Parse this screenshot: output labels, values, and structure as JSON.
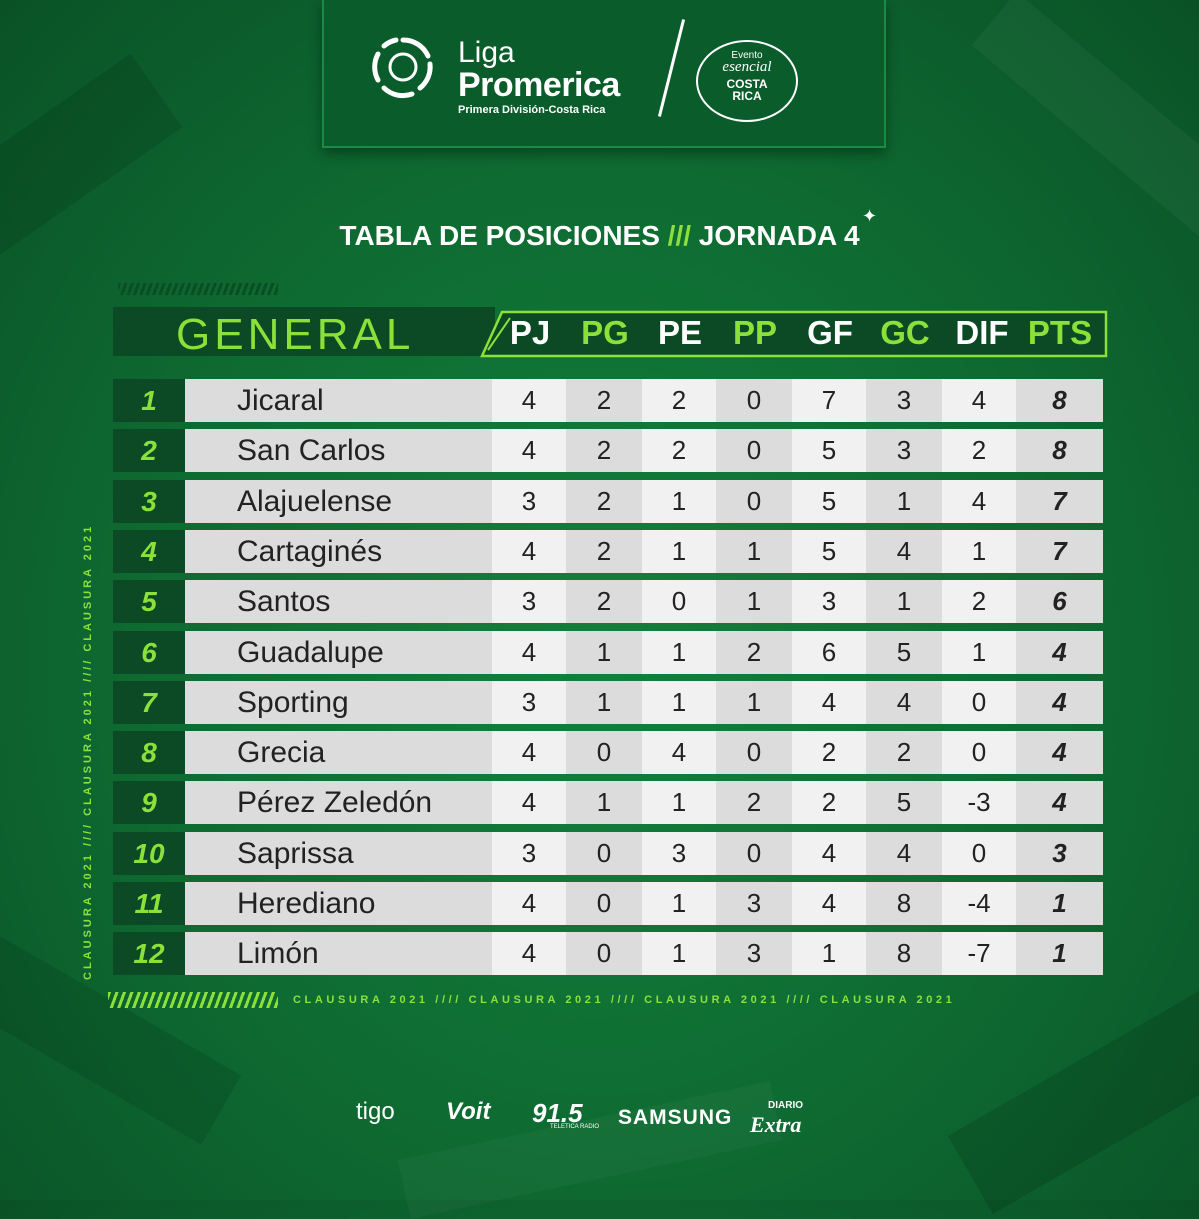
{
  "brand": {
    "liga": "Liga",
    "promerica": "Promerica",
    "subtitle": "Primera División-Costa Rica",
    "badge_line1": "Evento",
    "badge_line2": "esencial",
    "badge_line3": "COSTA",
    "badge_line4": "RICA"
  },
  "title": {
    "left": "TABLA DE POSICIONES",
    "slashes": "///",
    "right": "JORNADA 4"
  },
  "table": {
    "section_label": "GENERAL",
    "columns": [
      "PJ",
      "PG",
      "PE",
      "PP",
      "GF",
      "GC",
      "DIF",
      "PTS"
    ],
    "rows": [
      {
        "pos": "1",
        "team": "Jicaral",
        "pj": "4",
        "pg": "2",
        "pe": "2",
        "pp": "0",
        "gf": "7",
        "gc": "3",
        "dif": "4",
        "pts": "8"
      },
      {
        "pos": "2",
        "team": "San Carlos",
        "pj": "4",
        "pg": "2",
        "pe": "2",
        "pp": "0",
        "gf": "5",
        "gc": "3",
        "dif": "2",
        "pts": "8"
      },
      {
        "pos": "3",
        "team": "Alajuelense",
        "pj": "3",
        "pg": "2",
        "pe": "1",
        "pp": "0",
        "gf": "5",
        "gc": "1",
        "dif": "4",
        "pts": "7"
      },
      {
        "pos": "4",
        "team": "Cartaginés",
        "pj": "4",
        "pg": "2",
        "pe": "1",
        "pp": "1",
        "gf": "5",
        "gc": "4",
        "dif": "1",
        "pts": "7"
      },
      {
        "pos": "5",
        "team": "Santos",
        "pj": "3",
        "pg": "2",
        "pe": "0",
        "pp": "1",
        "gf": "3",
        "gc": "1",
        "dif": "2",
        "pts": "6"
      },
      {
        "pos": "6",
        "team": "Guadalupe",
        "pj": "4",
        "pg": "1",
        "pe": "1",
        "pp": "2",
        "gf": "6",
        "gc": "5",
        "dif": "1",
        "pts": "4"
      },
      {
        "pos": "7",
        "team": "Sporting",
        "pj": "3",
        "pg": "1",
        "pe": "1",
        "pp": "1",
        "gf": "4",
        "gc": "4",
        "dif": "0",
        "pts": "4"
      },
      {
        "pos": "8",
        "team": "Grecia",
        "pj": "4",
        "pg": "0",
        "pe": "4",
        "pp": "0",
        "gf": "2",
        "gc": "2",
        "dif": "0",
        "pts": "4"
      },
      {
        "pos": "9",
        "team": "Pérez Zeledón",
        "pj": "4",
        "pg": "1",
        "pe": "1",
        "pp": "2",
        "gf": "2",
        "gc": "5",
        "dif": "-3",
        "pts": "4"
      },
      {
        "pos": "10",
        "team": "Saprissa",
        "pj": "3",
        "pg": "0",
        "pe": "3",
        "pp": "0",
        "gf": "4",
        "gc": "4",
        "dif": "0",
        "pts": "3"
      },
      {
        "pos": "11",
        "team": "Herediano",
        "pj": "4",
        "pg": "0",
        "pe": "1",
        "pp": "3",
        "gf": "4",
        "gc": "8",
        "dif": "-4",
        "pts": "1"
      },
      {
        "pos": "12",
        "team": "Limón",
        "pj": "4",
        "pg": "0",
        "pe": "1",
        "pp": "3",
        "gf": "1",
        "gc": "8",
        "dif": "-7",
        "pts": "1"
      }
    ]
  },
  "footer": {
    "side_text": "CLAUSURA 2021 //// CLAUSURA 2021 //// CLAUSURA 2021",
    "bottom_text": "CLAUSURA 2021 //// CLAUSURA 2021 //// CLAUSURA 2021 //// CLAUSURA 2021"
  },
  "sponsors": {
    "tigo": "tigo",
    "voit": "Voit",
    "radio": "91.5",
    "radio_sub": "TELETICA RADIO",
    "samsung": "SAMSUNG",
    "diario": "DIARIO",
    "extra": "Extra"
  },
  "colors": {
    "accent_green": "#8be13a",
    "background": "#0f6b33",
    "dark_cell": "#0b4a24"
  }
}
